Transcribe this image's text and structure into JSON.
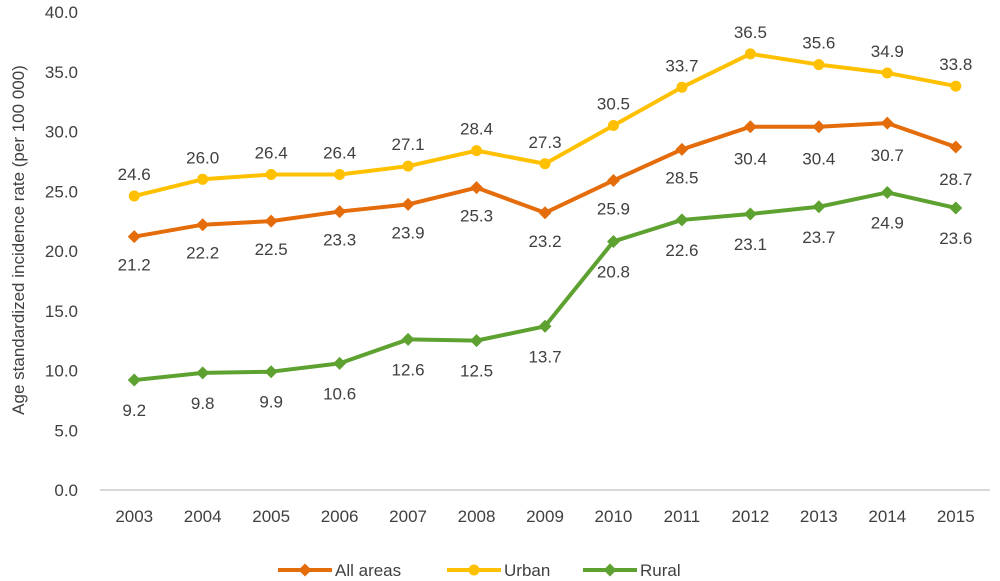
{
  "chart_data": {
    "type": "line",
    "title": "",
    "xlabel": "",
    "ylabel": "Age standardized incidence rate (per 100 000)",
    "ylim": [
      0,
      40
    ],
    "ytick_labels": [
      "0.0",
      "5.0",
      "10.0",
      "15.0",
      "20.0",
      "25.0",
      "30.0",
      "35.0",
      "40.0"
    ],
    "categories": [
      "2003",
      "2004",
      "2005",
      "2006",
      "2007",
      "2008",
      "2009",
      "2010",
      "2011",
      "2012",
      "2013",
      "2014",
      "2015"
    ],
    "grid": false,
    "legend_position": "bottom",
    "series": [
      {
        "name": "All areas",
        "color": "#E46C0A",
        "marker": "diamond",
        "values": [
          21.2,
          22.2,
          22.5,
          23.3,
          23.9,
          25.3,
          23.2,
          25.9,
          28.5,
          30.4,
          30.4,
          30.7,
          28.7
        ],
        "labels": [
          "21.2",
          "22.2",
          "22.5",
          "23.3",
          "23.9",
          "25.3",
          "23.2",
          "25.9",
          "28.5",
          "30.4",
          "30.4",
          "30.7",
          "28.7"
        ]
      },
      {
        "name": "Urban",
        "color": "#FFC000",
        "marker": "circle",
        "values": [
          24.6,
          26.0,
          26.4,
          26.4,
          27.1,
          28.4,
          27.3,
          30.5,
          33.7,
          36.5,
          35.6,
          34.9,
          33.8
        ],
        "labels": [
          "24.6",
          "26.0",
          "26.4",
          "26.4",
          "27.1",
          "28.4",
          "27.3",
          "30.5",
          "33.7",
          "36.5",
          "35.6",
          "34.9",
          "33.8"
        ]
      },
      {
        "name": "Rural",
        "color": "#5DA130",
        "marker": "diamond",
        "values": [
          9.2,
          9.8,
          9.9,
          10.6,
          12.6,
          12.5,
          13.7,
          20.8,
          22.6,
          23.1,
          23.7,
          24.9,
          23.6
        ],
        "labels": [
          "9.2",
          "9.8",
          "9.9",
          "10.6",
          "12.6",
          "12.5",
          "13.7",
          "20.8",
          "22.6",
          "23.1",
          "23.7",
          "24.9",
          "23.6"
        ]
      }
    ]
  }
}
